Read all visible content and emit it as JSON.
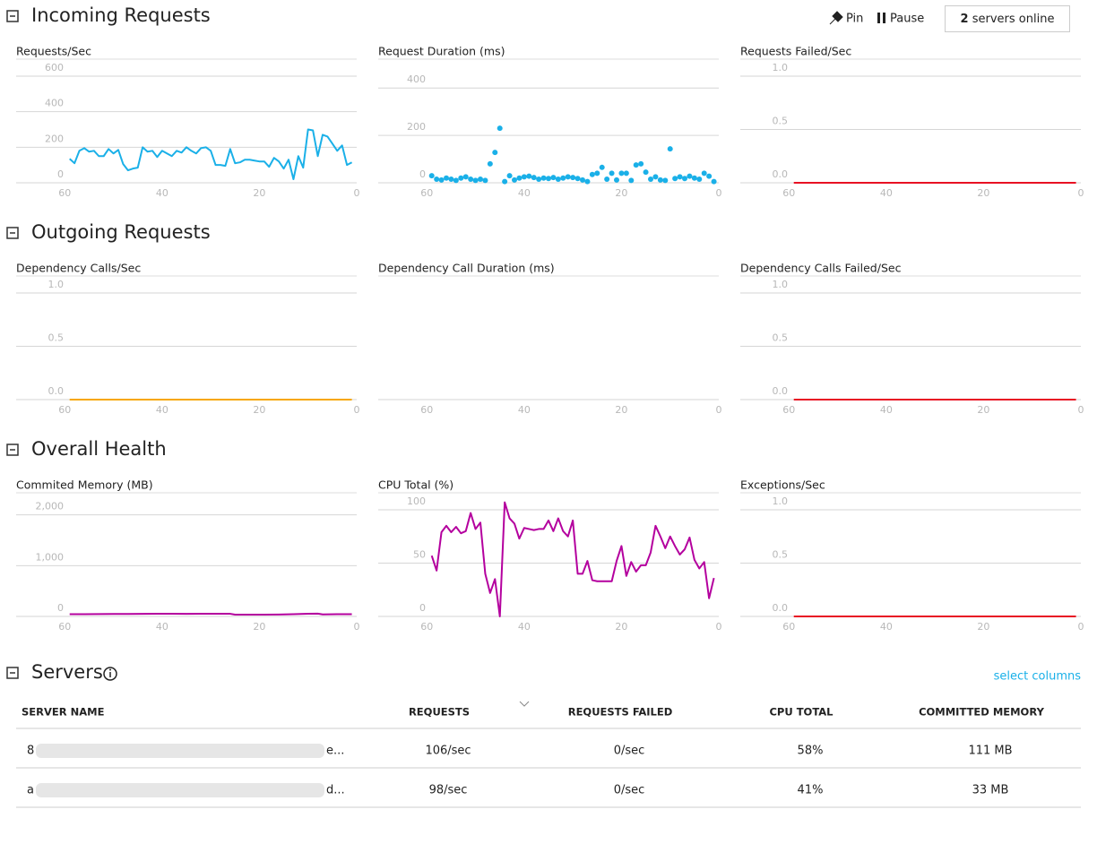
{
  "header": {
    "pin": "Pin",
    "pause": "Pause",
    "servers_online_count": "2",
    "servers_online_text": "servers online"
  },
  "sections": [
    {
      "title": "Incoming Requests",
      "charts": [
        {
          "type": "line",
          "title": "Requests/Sec",
          "xlim": [
            70,
            0
          ],
          "xticks": [
            60,
            40,
            20,
            0
          ],
          "ylim": [
            0,
            600
          ],
          "yticks": [
            0,
            200,
            400,
            600
          ],
          "x": [
            59,
            58,
            57,
            56,
            55,
            54,
            53,
            52,
            51,
            50,
            49,
            48,
            47,
            46,
            45,
            44,
            43,
            42,
            41,
            40,
            39,
            38,
            37,
            36,
            35,
            34,
            33,
            32,
            31,
            30,
            29,
            28,
            27,
            26,
            25,
            24,
            23,
            22,
            21,
            20,
            19,
            18,
            17,
            16,
            15,
            14,
            13,
            12,
            11,
            10,
            9,
            8,
            7,
            6,
            5,
            4,
            3,
            2,
            1
          ],
          "series": [
            {
              "color": "#1ab0e8",
              "values": [
                135,
                110,
                180,
                195,
                175,
                180,
                150,
                150,
                190,
                165,
                185,
                105,
                70,
                80,
                85,
                200,
                175,
                180,
                145,
                180,
                165,
                150,
                180,
                170,
                200,
                180,
                165,
                195,
                200,
                180,
                100,
                100,
                95,
                190,
                110,
                115,
                130,
                130,
                125,
                120,
                120,
                90,
                140,
                120,
                80,
                130,
                20,
                150,
                85,
                300,
                295,
                150,
                270,
                260,
                220,
                180,
                210,
                100,
                115
              ]
            }
          ]
        },
        {
          "type": "scatter",
          "title": "Request Duration (ms)",
          "xlim": [
            70,
            0
          ],
          "xticks": [
            60,
            40,
            20,
            0
          ],
          "ylim": [
            0,
            450
          ],
          "yticks": [
            0,
            200,
            400
          ],
          "x": [
            59,
            58,
            57,
            56,
            55,
            54,
            53,
            52,
            51,
            50,
            49,
            48,
            47,
            46,
            45,
            44,
            43,
            42,
            41,
            40,
            39,
            38,
            37,
            36,
            35,
            34,
            33,
            32,
            31,
            30,
            29,
            28,
            27,
            26,
            25,
            24,
            23,
            22,
            21,
            20,
            19,
            18,
            17,
            16,
            15,
            14,
            13,
            12,
            11,
            10,
            9,
            8,
            7,
            6,
            5,
            4,
            3,
            2,
            1
          ],
          "series": [
            {
              "color": "#1ab0e8",
              "values": [
                30,
                15,
                12,
                20,
                15,
                10,
                20,
                25,
                15,
                10,
                15,
                10,
                80,
                128,
                230,
                5,
                30,
                12,
                20,
                25,
                28,
                22,
                15,
                20,
                18,
                22,
                15,
                20,
                25,
                22,
                18,
                12,
                5,
                35,
                40,
                65,
                15,
                40,
                12,
                40,
                40,
                10,
                75,
                80,
                45,
                15,
                25,
                12,
                10,
                143,
                18,
                25,
                18,
                28,
                20,
                15,
                40,
                28,
                5
              ]
            }
          ]
        },
        {
          "type": "line",
          "title": "Requests Failed/Sec",
          "xlim": [
            70,
            0
          ],
          "xticks": [
            60,
            40,
            20,
            0
          ],
          "ylim": [
            0,
            1
          ],
          "yticks": [
            {
              "value": 0,
              "label": "0.0"
            },
            {
              "value": 0.5,
              "label": "0.5"
            },
            {
              "value": 1,
              "label": "1.0"
            }
          ],
          "x": [
            59,
            1
          ],
          "series": [
            {
              "color": "#e81123",
              "values": [
                0,
                0
              ]
            }
          ]
        }
      ]
    },
    {
      "title": "Outgoing Requests",
      "charts": [
        {
          "type": "line",
          "title": "Dependency Calls/Sec",
          "xlim": [
            70,
            0
          ],
          "xticks": [
            60,
            40,
            20,
            0
          ],
          "ylim": [
            0,
            1
          ],
          "yticks": [
            {
              "value": 0,
              "label": "0.0"
            },
            {
              "value": 0.5,
              "label": "0.5"
            },
            {
              "value": 1,
              "label": "1.0"
            }
          ],
          "x": [
            59,
            1
          ],
          "series": [
            {
              "color": "#f7a700",
              "values": [
                0,
                0
              ]
            }
          ]
        },
        {
          "type": "line",
          "title": "Dependency Call Duration (ms)",
          "xlim": [
            70,
            0
          ],
          "xticks": [
            60,
            40,
            20,
            0
          ],
          "x": [],
          "series": []
        },
        {
          "type": "line",
          "title": "Dependency Calls Failed/Sec",
          "xlim": [
            70,
            0
          ],
          "xticks": [
            60,
            40,
            20,
            0
          ],
          "ylim": [
            0,
            1
          ],
          "yticks": [
            {
              "value": 0,
              "label": "0.0"
            },
            {
              "value": 0.5,
              "label": "0.5"
            },
            {
              "value": 1,
              "label": "1.0"
            }
          ],
          "x": [
            59,
            1
          ],
          "series": [
            {
              "color": "#e81123",
              "values": [
                0,
                0
              ]
            }
          ]
        }
      ]
    },
    {
      "title": "Overall Health",
      "charts": [
        {
          "type": "line",
          "title": "Commited Memory (MB)",
          "xlim": [
            70,
            0
          ],
          "xticks": [
            60,
            40,
            20,
            0
          ],
          "ylim": [
            0,
            2100
          ],
          "yticks": [
            0,
            {
              "value": 1000,
              "label": "1,000"
            },
            {
              "value": 2000,
              "label": "2,000"
            }
          ],
          "x": [
            59,
            56,
            53,
            50,
            47,
            44,
            41,
            38,
            35,
            32,
            29,
            26,
            25,
            22,
            19,
            16,
            13,
            10,
            8,
            7,
            4,
            1
          ],
          "series": [
            {
              "color": "#b4009e",
              "values": [
                45,
                45,
                47,
                48,
                48,
                50,
                52,
                52,
                50,
                52,
                52,
                52,
                35,
                35,
                35,
                38,
                45,
                52,
                55,
                40,
                45,
                45
              ]
            }
          ]
        },
        {
          "type": "line",
          "title": "CPU Total (%)",
          "xlim": [
            70,
            0
          ],
          "xticks": [
            60,
            40,
            20,
            0
          ],
          "ylim": [
            0,
            100
          ],
          "yticks": [
            0,
            50,
            100
          ],
          "x": [
            59,
            58,
            57,
            56,
            55,
            54,
            53,
            52,
            51,
            50,
            49,
            48,
            47,
            46,
            45,
            44,
            43,
            42,
            41,
            40,
            39,
            38,
            37,
            36,
            35,
            34,
            33,
            32,
            31,
            30,
            29,
            28,
            27,
            26,
            25,
            24,
            23,
            22,
            21,
            20,
            19,
            18,
            17,
            16,
            15,
            14,
            13,
            12,
            11,
            10,
            9,
            8,
            7,
            6,
            5,
            4,
            3,
            2,
            1
          ],
          "series": [
            {
              "color": "#b4009e",
              "values": [
                57,
                43,
                79,
                85,
                79,
                84,
                78,
                80,
                97,
                82,
                88,
                40,
                22,
                35,
                0,
                107,
                92,
                87,
                73,
                83,
                82,
                81,
                82,
                82,
                90,
                80,
                92,
                80,
                75,
                90,
                40,
                40,
                52,
                34,
                33,
                33,
                33,
                33,
                52,
                66,
                38,
                51,
                42,
                48,
                48,
                60,
                85,
                75,
                64,
                75,
                66,
                58,
                63,
                74,
                53,
                45,
                51,
                17,
                36
              ]
            }
          ]
        },
        {
          "type": "line",
          "title": "Exceptions/Sec",
          "xlim": [
            70,
            0
          ],
          "xticks": [
            60,
            40,
            20,
            0
          ],
          "ylim": [
            0,
            1
          ],
          "yticks": [
            {
              "value": 0,
              "label": "0.0"
            },
            {
              "value": 0.5,
              "label": "0.5"
            },
            {
              "value": 1,
              "label": "1.0"
            }
          ],
          "x": [
            59,
            1
          ],
          "series": [
            {
              "color": "#e81123",
              "values": [
                0,
                0
              ]
            }
          ]
        }
      ]
    }
  ],
  "servers": {
    "title": "Servers",
    "select_columns": "select columns",
    "columns": [
      "SERVER NAME",
      "REQUESTS",
      "REQUESTS FAILED",
      "CPU TOTAL",
      "COMMITTED MEMORY"
    ],
    "rows": [
      [
        "8",
        "e...",
        "106/sec",
        "0/sec",
        "58%",
        "111 MB"
      ],
      [
        "a",
        "d...",
        "98/sec",
        "0/sec",
        "41%",
        "33 MB"
      ]
    ]
  }
}
